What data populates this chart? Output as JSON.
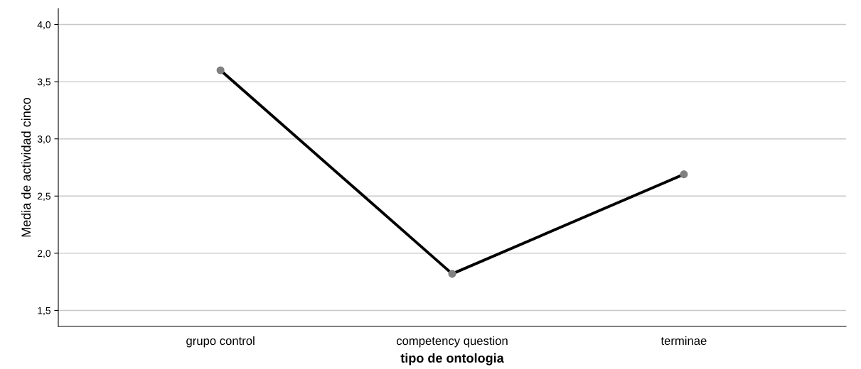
{
  "chart_data": {
    "type": "line",
    "xlabel": "tipo de ontologia",
    "ylabel": "Media de actividad cinco",
    "categories": [
      "grupo control",
      "competency question",
      "terminae"
    ],
    "series": [
      {
        "color": "#000000",
        "values": [
          3.6,
          1.82,
          2.69
        ]
      }
    ],
    "ylim": [
      1.36,
      4.14
    ],
    "yticks": [
      {
        "value": 1.5,
        "label": "1,5"
      },
      {
        "value": 2.0,
        "label": "2,0"
      },
      {
        "value": 2.5,
        "label": "2,5"
      },
      {
        "value": 3.0,
        "label": "3,0"
      },
      {
        "value": 3.5,
        "label": "3,5"
      },
      {
        "value": 4.0,
        "label": "4,0"
      }
    ],
    "grid": "y",
    "marker": "circle",
    "line_style": "solid"
  }
}
